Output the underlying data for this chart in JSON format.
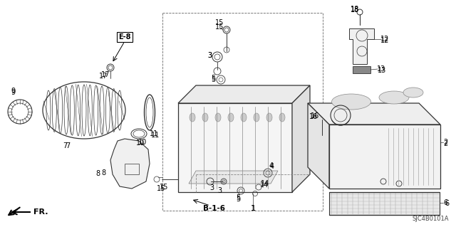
{
  "bg_color": "#ffffff",
  "fig_width": 6.4,
  "fig_height": 3.19,
  "dpi": 100,
  "diagram_code": "SJC4B0101A",
  "fr_label": "FR.",
  "e8_label": "E-8",
  "b16_label": "B-1-6",
  "lc": "#333333",
  "lw": 0.7
}
